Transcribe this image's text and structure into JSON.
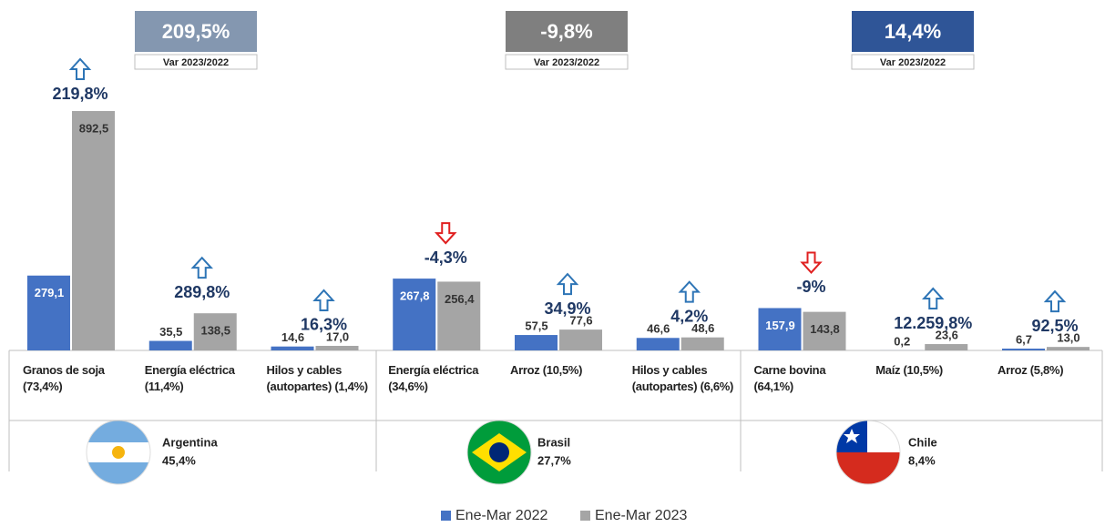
{
  "chart_data": {
    "type": "bar",
    "categories": [
      "Granos de soja (73,4%)",
      "Energía eléctrica (11,4%)",
      "Hilos y cables (autopartes) (1,4%)",
      "Energía eléctrica (34,6%)",
      "Arroz (10,5%)",
      "Hilos y cables (autopartes) (6,6%)",
      "Carne bovina (64,1%)",
      "Maíz (10,5%)",
      "Arroz (5,8%)"
    ],
    "series": [
      {
        "name": "Ene-Mar 2022",
        "color": "#4472c4",
        "values": [
          279.1,
          35.5,
          14.6,
          267.8,
          57.5,
          46.6,
          157.9,
          0.2,
          6.7
        ],
        "value_labels": [
          "279,1",
          "35,5",
          "14,6",
          "267,8",
          "57,5",
          "46,6",
          "157,9",
          "0,2",
          "6,7"
        ]
      },
      {
        "name": "Ene-Mar 2023",
        "color": "#a5a5a5",
        "values": [
          892.5,
          138.5,
          17.0,
          256.4,
          77.6,
          48.6,
          143.8,
          23.6,
          13.0
        ],
        "value_labels": [
          "892,5",
          "138,5",
          "17,0",
          "256,4",
          "77,6",
          "48,6",
          "143,8",
          "23,6",
          "13,0"
        ]
      }
    ],
    "changes": [
      "219,8%",
      "289,8%",
      "16,3%",
      "-4,3%",
      "34,9%",
      "4,2%",
      "-9%",
      "12.259,8%",
      "92,5%"
    ],
    "groups": [
      {
        "name": "Argentina",
        "share": "45,4%",
        "total_change": "209,5%",
        "total_label": "Var 2023/2022",
        "color": "#8497b0"
      },
      {
        "name": "Brasil",
        "share": "27,7%",
        "total_change": "-9,8%",
        "total_label": "Var 2023/2022",
        "color": "#7f7f7f"
      },
      {
        "name": "Chile",
        "share": "8,4%",
        "total_change": "14,4%",
        "total_label": "Var 2023/2022",
        "color": "#2f5597"
      }
    ],
    "ylim": [
      0,
      900
    ],
    "legend": "bottom"
  }
}
